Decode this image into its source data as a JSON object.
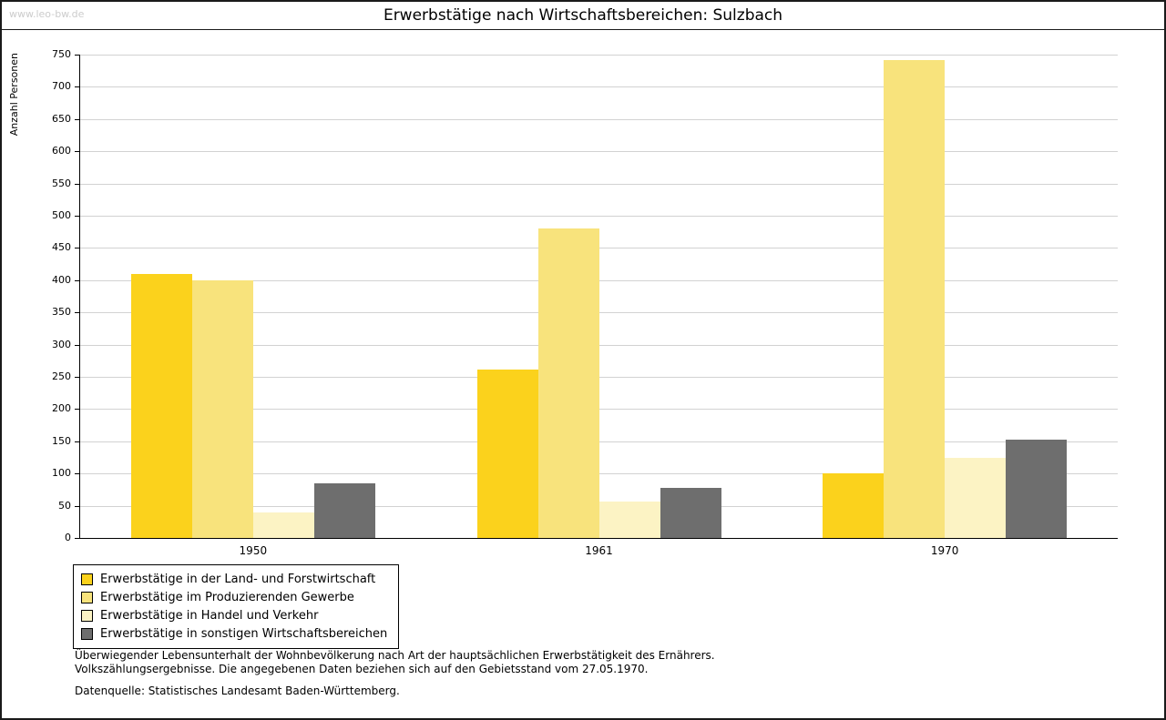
{
  "watermark": "www.leo-bw.de",
  "chart_data": {
    "type": "bar",
    "title": "Erwerbstätige nach Wirtschaftsbereichen: Sulzbach",
    "ylabel": "Anzahl Personen",
    "xlabel": "",
    "categories": [
      "1950",
      "1961",
      "1970"
    ],
    "series": [
      {
        "name": "Erwerbstätige in der Land- und Forstwirtschaft",
        "color": "#fbd21c",
        "values": [
          410,
          262,
          100
        ]
      },
      {
        "name": "Erwerbstätige im Produzierenden Gewerbe",
        "color": "#f8e37c",
        "values": [
          400,
          480,
          742
        ]
      },
      {
        "name": "Erwerbstätige in Handel und Verkehr",
        "color": "#fcf3c4",
        "values": [
          40,
          57,
          125
        ]
      },
      {
        "name": "Erwerbstätige in sonstigen Wirtschaftsbereichen",
        "color": "#6e6e6e",
        "values": [
          85,
          78,
          152
        ]
      }
    ],
    "ylim": [
      0,
      750
    ],
    "ytick_step": 50,
    "grid": "horizontal",
    "legend_position": "bottom-left"
  },
  "footnotes": {
    "line1": "Überwiegender Lebensunterhalt der Wohnbevölkerung nach Art der hauptsächlichen Erwerbstätigkeit des Ernährers.",
    "line2": "Volkszählungsergebnisse. Die angegebenen Daten beziehen sich auf den Gebietsstand vom 27.05.1970.",
    "source": "Datenquelle: Statistisches Landesamt Baden-Württemberg."
  }
}
